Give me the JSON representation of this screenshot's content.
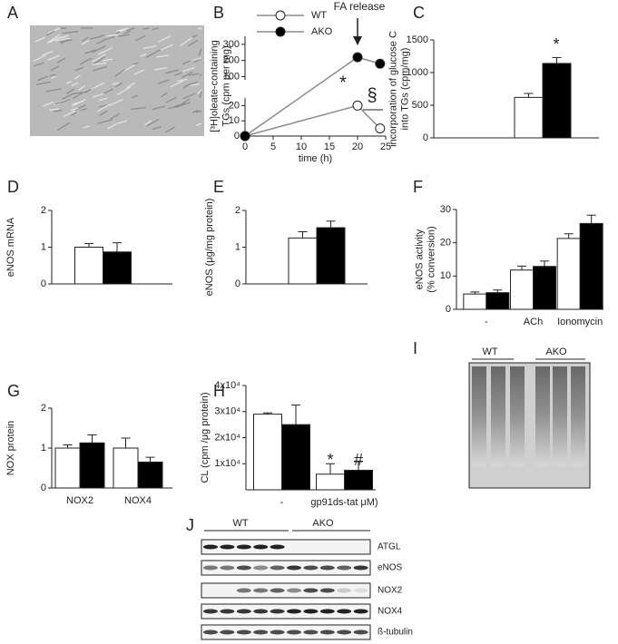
{
  "micrograph": {
    "panel": "A"
  },
  "chart_data": [
    {
      "panel": "B",
      "type": "line",
      "ylabel": [
        "[³H]oleate-containing",
        "TGs (cpm per mg)"
      ],
      "xlabel": "time (h)",
      "x": [
        0,
        20,
        24
      ],
      "series": [
        {
          "name": "WT",
          "color": "#ffffff",
          "values": [
            0,
            20,
            5
          ]
        },
        {
          "name": "AKO",
          "color": "#000000",
          "values": [
            0,
            220,
            180
          ]
        }
      ],
      "line_color": "#8c8c8c",
      "xlim": [
        0,
        25
      ],
      "xticks": [
        0,
        5,
        10,
        15,
        20,
        25
      ],
      "ylim": [
        0,
        350
      ],
      "y_break": [
        25,
        80
      ],
      "yticks": [
        0,
        10,
        20,
        100,
        200,
        300
      ],
      "legend": "top-left",
      "annotations": [
        "FA release",
        "*",
        "§"
      ]
    },
    {
      "panel": "C",
      "type": "bar",
      "ylabel": [
        "incorporation of glucose C",
        "into TGs (cpm/mg)"
      ],
      "categories": [
        null
      ],
      "series": [
        {
          "color": "#ffffff",
          "values": [
            620
          ],
          "errors": [
            60
          ]
        },
        {
          "color": "#000000",
          "values": [
            1140
          ],
          "errors": [
            90
          ]
        }
      ],
      "ylim": [
        0,
        1500
      ],
      "yticks": [
        0,
        500,
        1000,
        1500
      ],
      "annotations": [
        "*"
      ]
    },
    {
      "panel": "D",
      "type": "bar",
      "ylabel": [
        "eNOS mRNA"
      ],
      "categories": [
        null
      ],
      "series": [
        {
          "color": "#ffffff",
          "values": [
            1.0
          ],
          "errors": [
            0.1
          ]
        },
        {
          "color": "#000000",
          "values": [
            0.87
          ],
          "errors": [
            0.25
          ]
        }
      ],
      "ylim": [
        0,
        2
      ],
      "yticks": [
        0,
        1,
        2
      ]
    },
    {
      "panel": "E",
      "type": "bar",
      "ylabel": [
        "eNOS (μg/mg protein)"
      ],
      "categories": [
        null
      ],
      "series": [
        {
          "color": "#ffffff",
          "values": [
            1.25
          ],
          "errors": [
            0.17
          ]
        },
        {
          "color": "#000000",
          "values": [
            1.53
          ],
          "errors": [
            0.18
          ]
        }
      ],
      "ylim": [
        0,
        2
      ],
      "yticks": [
        0,
        1,
        2
      ]
    },
    {
      "panel": "F",
      "type": "bar",
      "ylabel": [
        "eNOS activity",
        "(% conversion)"
      ],
      "categories": [
        "-",
        "ACh",
        "Ionomycin"
      ],
      "series": [
        {
          "color": "#ffffff",
          "values": [
            4.6,
            11.8,
            21.3
          ],
          "errors": [
            0.6,
            1.2,
            1.4
          ]
        },
        {
          "color": "#000000",
          "values": [
            5.0,
            12.9,
            25.8
          ],
          "errors": [
            0.8,
            1.6,
            2.5
          ]
        }
      ],
      "ylim": [
        0,
        30
      ],
      "yticks": [
        0,
        10,
        20,
        30
      ]
    },
    {
      "panel": "G",
      "type": "bar",
      "ylabel": [
        "NOX protein"
      ],
      "categories": [
        "NOX2",
        "NOX4"
      ],
      "series": [
        {
          "color": "#ffffff",
          "values": [
            1.0,
            1.0
          ],
          "errors": [
            0.08,
            0.25
          ]
        },
        {
          "color": "#000000",
          "values": [
            1.13,
            0.65
          ],
          "errors": [
            0.2,
            0.12
          ]
        }
      ],
      "ylim": [
        0,
        2
      ],
      "yticks": [
        0,
        1,
        2
      ]
    },
    {
      "panel": "H",
      "type": "bar",
      "ylabel": [
        "CL (cpm /μg protein)"
      ],
      "categories": [
        "-",
        "gp91ds-tat  μM)"
      ],
      "series": [
        {
          "color": "#ffffff",
          "values": [
            29000,
            6000
          ],
          "errors": [
            500,
            4000
          ]
        },
        {
          "color": "#000000",
          "values": [
            25000,
            7500
          ],
          "errors": [
            7500,
            3500
          ]
        }
      ],
      "ylim": [
        0,
        40000
      ],
      "yticks": [
        {
          "value": 10000,
          "label": "1x10⁴"
        },
        {
          "value": 20000,
          "label": "2x10⁴"
        },
        {
          "value": 30000,
          "label": "3x10⁴"
        },
        {
          "value": 40000,
          "label": "4x10⁴"
        }
      ],
      "annotations": [
        "*",
        "#"
      ]
    }
  ],
  "gel": {
    "panel": "I",
    "groups": [
      "WT",
      "AKO"
    ]
  },
  "blot": {
    "panel": "J",
    "groups": [
      "WT",
      "AKO"
    ],
    "rows": [
      "ATGL",
      "eNOS",
      "NOX2",
      "NOX4",
      "ß-tubulin"
    ]
  }
}
